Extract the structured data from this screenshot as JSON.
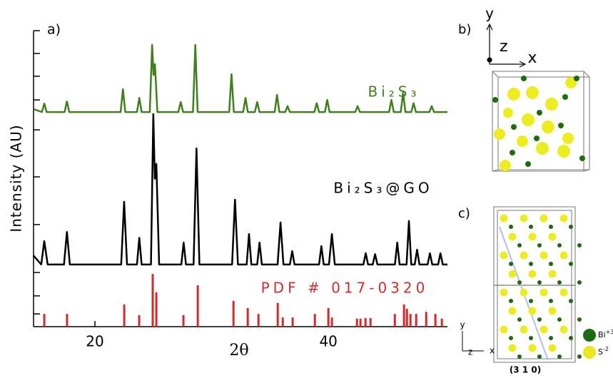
{
  "chart_data": {
    "type": "line",
    "panel_label": "a)",
    "x_label": "2θ",
    "y_label": "Intensity (AU)",
    "xlim": [
      14.74,
      50.2
    ],
    "ylim": [
      0,
      100
    ],
    "xticks": [
      20,
      40
    ],
    "yticks": [
      4.3,
      10.4,
      18.3,
      34.5,
      50.6,
      66.5,
      76.6,
      84.6,
      92.3,
      100
    ],
    "series": [
      {
        "name": "Bi₂S₃",
        "type": "line",
        "color": "#3f7f1c",
        "x": [
          14.74,
          15.46,
          15.66,
          15.86,
          17.4,
          17.6,
          17.8,
          22.2,
          22.4,
          22.6,
          23.6,
          23.8,
          24.0,
          24.7,
          24.9,
          25.02,
          25.14,
          25.35,
          27.15,
          27.35,
          27.55,
          28.4,
          28.6,
          28.8,
          31.5,
          31.7,
          31.9,
          32.7,
          32.9,
          33.1,
          33.7,
          33.9,
          34.1,
          35.4,
          35.6,
          35.8,
          36.3,
          36.5,
          36.7,
          38.8,
          39.0,
          39.2,
          39.7,
          39.9,
          40.1,
          42.3,
          42.5,
          42.7,
          45.2,
          45.4,
          45.6,
          46.2,
          46.4,
          46.6,
          47.1,
          47.3,
          47.5,
          48.65,
          48.85,
          49.05,
          50.2
        ],
        "values": [
          73.5,
          72.5,
          75.4,
          72.5,
          72.5,
          76.1,
          72.5,
          72.5,
          80.2,
          72.5,
          72.5,
          77.3,
          72.5,
          72.5,
          95.2,
          85,
          88.7,
          72.5,
          72.5,
          75.9,
          72.5,
          72.5,
          95.2,
          72.5,
          72.5,
          85.3,
          72.5,
          72.5,
          77.3,
          72.5,
          72.5,
          75.9,
          72.5,
          72.5,
          78.3,
          72.5,
          72.5,
          74.5,
          72.5,
          72.5,
          75.5,
          72.5,
          72.5,
          76.6,
          72.5,
          72.5,
          74.5,
          72.5,
          72.5,
          76.6,
          72.5,
          72.5,
          79,
          72.5,
          72.5,
          75.5,
          72.5,
          72.5,
          74.5,
          72.5,
          72.5
        ]
      },
      {
        "name": "Bi₂S₃@GO",
        "type": "line",
        "color": "#000000",
        "x": [
          14.74,
          15.4,
          15.66,
          15.95,
          17.35,
          17.6,
          17.85,
          22.25,
          22.5,
          22.75,
          23.6,
          23.8,
          24.0,
          24.8,
          25.0,
          25.13,
          25.26,
          25.5,
          27.4,
          27.6,
          27.8,
          28.45,
          28.7,
          28.95,
          31.75,
          32.0,
          32.25,
          33.0,
          33.2,
          33.4,
          33.9,
          34.1,
          34.3,
          35.65,
          35.9,
          36.15,
          36.7,
          36.9,
          37.1,
          39.2,
          39.4,
          39.6,
          40.05,
          40.3,
          40.55,
          43.0,
          43.2,
          43.4,
          43.8,
          44.0,
          44.2,
          45.7,
          45.9,
          46.1,
          46.7,
          46.9,
          47.1,
          47.4,
          47.6,
          47.8,
          48.5,
          48.7,
          48.9,
          49.4,
          49.6,
          49.8,
          50.2
        ],
        "values": [
          24,
          21,
          28.9,
          21,
          21,
          32,
          21,
          21,
          42.2,
          21,
          21,
          30,
          21,
          21,
          71.8,
          50,
          55,
          21,
          21,
          28.4,
          21,
          21,
          60.2,
          21,
          21,
          42.9,
          21,
          21,
          31.3,
          21,
          21,
          28.4,
          21,
          21,
          35.2,
          21,
          21,
          25.5,
          21,
          21,
          27.2,
          21,
          21,
          31.3,
          21,
          21,
          24.8,
          21,
          21,
          24.5,
          21,
          21,
          28.4,
          21,
          21,
          35.7,
          21,
          21,
          26,
          21,
          21,
          24.8,
          21,
          21,
          24.8,
          21,
          21
        ]
      },
      {
        "name": "PDF # 017-0320",
        "type": "bar",
        "color": "#d62a2a",
        "x": [
          15.66,
          17.61,
          22.51,
          23.79,
          24.95,
          25.26,
          27.58,
          28.81,
          31.87,
          33.09,
          34.01,
          35.66,
          36.09,
          36.94,
          38.84,
          40.0,
          40.3,
          42.45,
          42.75,
          43.18,
          43.61,
          45.69,
          46.48,
          46.73,
          47.03,
          47.52,
          48.38,
          49.17,
          49.72
        ],
        "values": [
          4.3,
          4.3,
          7.5,
          3.9,
          17.8,
          11.6,
          3.9,
          14,
          8.7,
          6.3,
          4.3,
          8,
          3.1,
          3.1,
          4.3,
          6.3,
          3.1,
          2.7,
          2.7,
          2.9,
          2.9,
          4.3,
          7.5,
          6,
          4.3,
          4.3,
          5,
          4.3,
          2.7
        ]
      }
    ]
  },
  "panels": {
    "b": {
      "label": "b)",
      "axes": [
        "y",
        "z",
        "x"
      ]
    },
    "c": {
      "label": "c)",
      "axes": [
        "y",
        "z",
        "x"
      ],
      "plane": "(3 1 0)",
      "legend": [
        {
          "name": "Bi",
          "charge": "+3"
        },
        {
          "name": "S",
          "charge": "-2"
        }
      ]
    }
  }
}
